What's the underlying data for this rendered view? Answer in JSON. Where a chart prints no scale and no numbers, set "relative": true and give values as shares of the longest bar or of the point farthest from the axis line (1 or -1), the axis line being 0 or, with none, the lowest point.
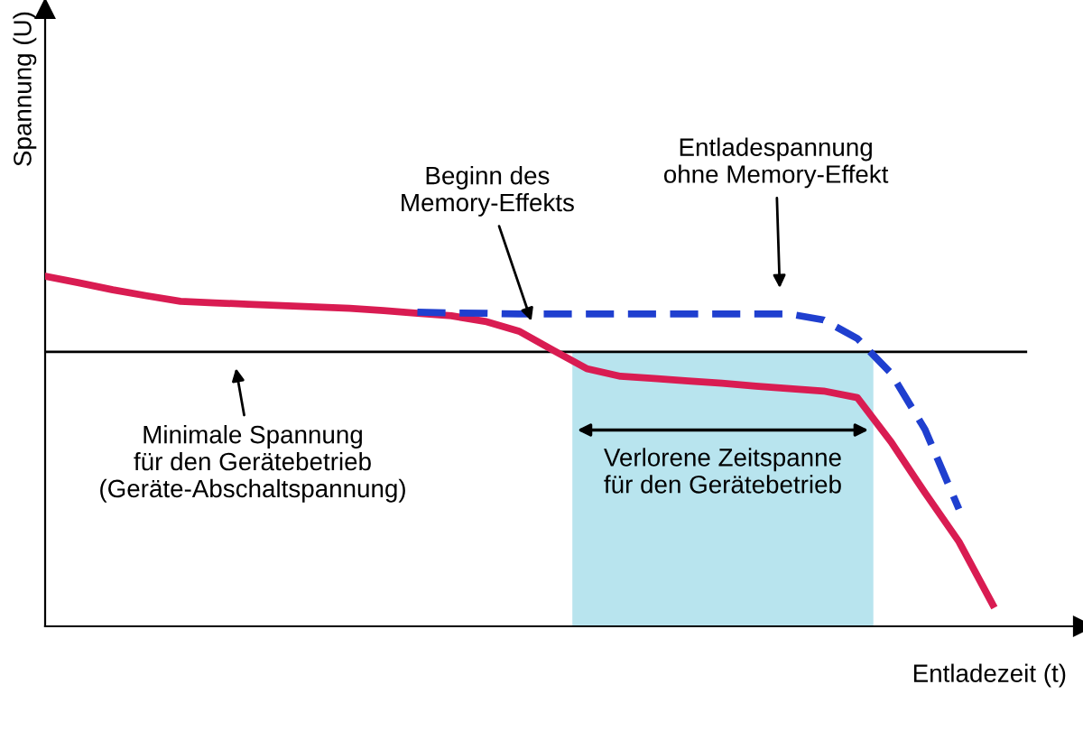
{
  "chart_data": {
    "type": "line",
    "relative": true,
    "xlabel": "Entladezeit (t)",
    "ylabel": "Spannung (U)",
    "legend": false,
    "marker": "none",
    "categories": [
      null,
      null,
      null,
      null,
      null,
      null,
      null,
      null,
      null,
      null,
      null,
      null,
      null,
      null,
      null,
      null,
      null,
      null,
      null,
      null,
      null,
      null,
      null,
      null,
      null,
      null,
      null,
      null,
      null
    ],
    "series": [
      {
        "color": "#d91c52",
        "line_style": "solid",
        "values": [
          1.0,
          0.981,
          0.961,
          0.944,
          0.928,
          0.924,
          0.92,
          0.916,
          0.912,
          0.908,
          0.902,
          0.894,
          0.887,
          0.871,
          0.843,
          0.789,
          0.736,
          0.714,
          0.708,
          0.701,
          0.694,
          0.686,
          0.679,
          0.672,
          0.653,
          0.526,
          0.381,
          0.242,
          0.062
        ]
      },
      {
        "color": "#1f3fcf",
        "line_style": "dashed",
        "values": [
          null,
          null,
          null,
          null,
          null,
          null,
          null,
          null,
          null,
          null,
          null,
          0.897,
          0.895,
          0.894,
          0.892,
          0.892,
          0.892,
          0.892,
          0.892,
          0.892,
          0.892,
          0.892,
          0.892,
          0.875,
          0.822,
          0.722,
          0.562,
          0.335,
          null
        ]
      }
    ],
    "ref_lines": [
      {
        "axis": "y",
        "value": 0.784,
        "color": "#000000"
      }
    ],
    "annotations": [
      "Beginn des\nMemory-Effekts",
      "Entladespannung\nohne Memory-Effekt",
      "Minimale Spannung\nfür den Gerätebetrieb\n(Geräte-Abschaltspannung)",
      "Verlorene Zeitspanne\nfür den Gerätebetrieb"
    ]
  }
}
